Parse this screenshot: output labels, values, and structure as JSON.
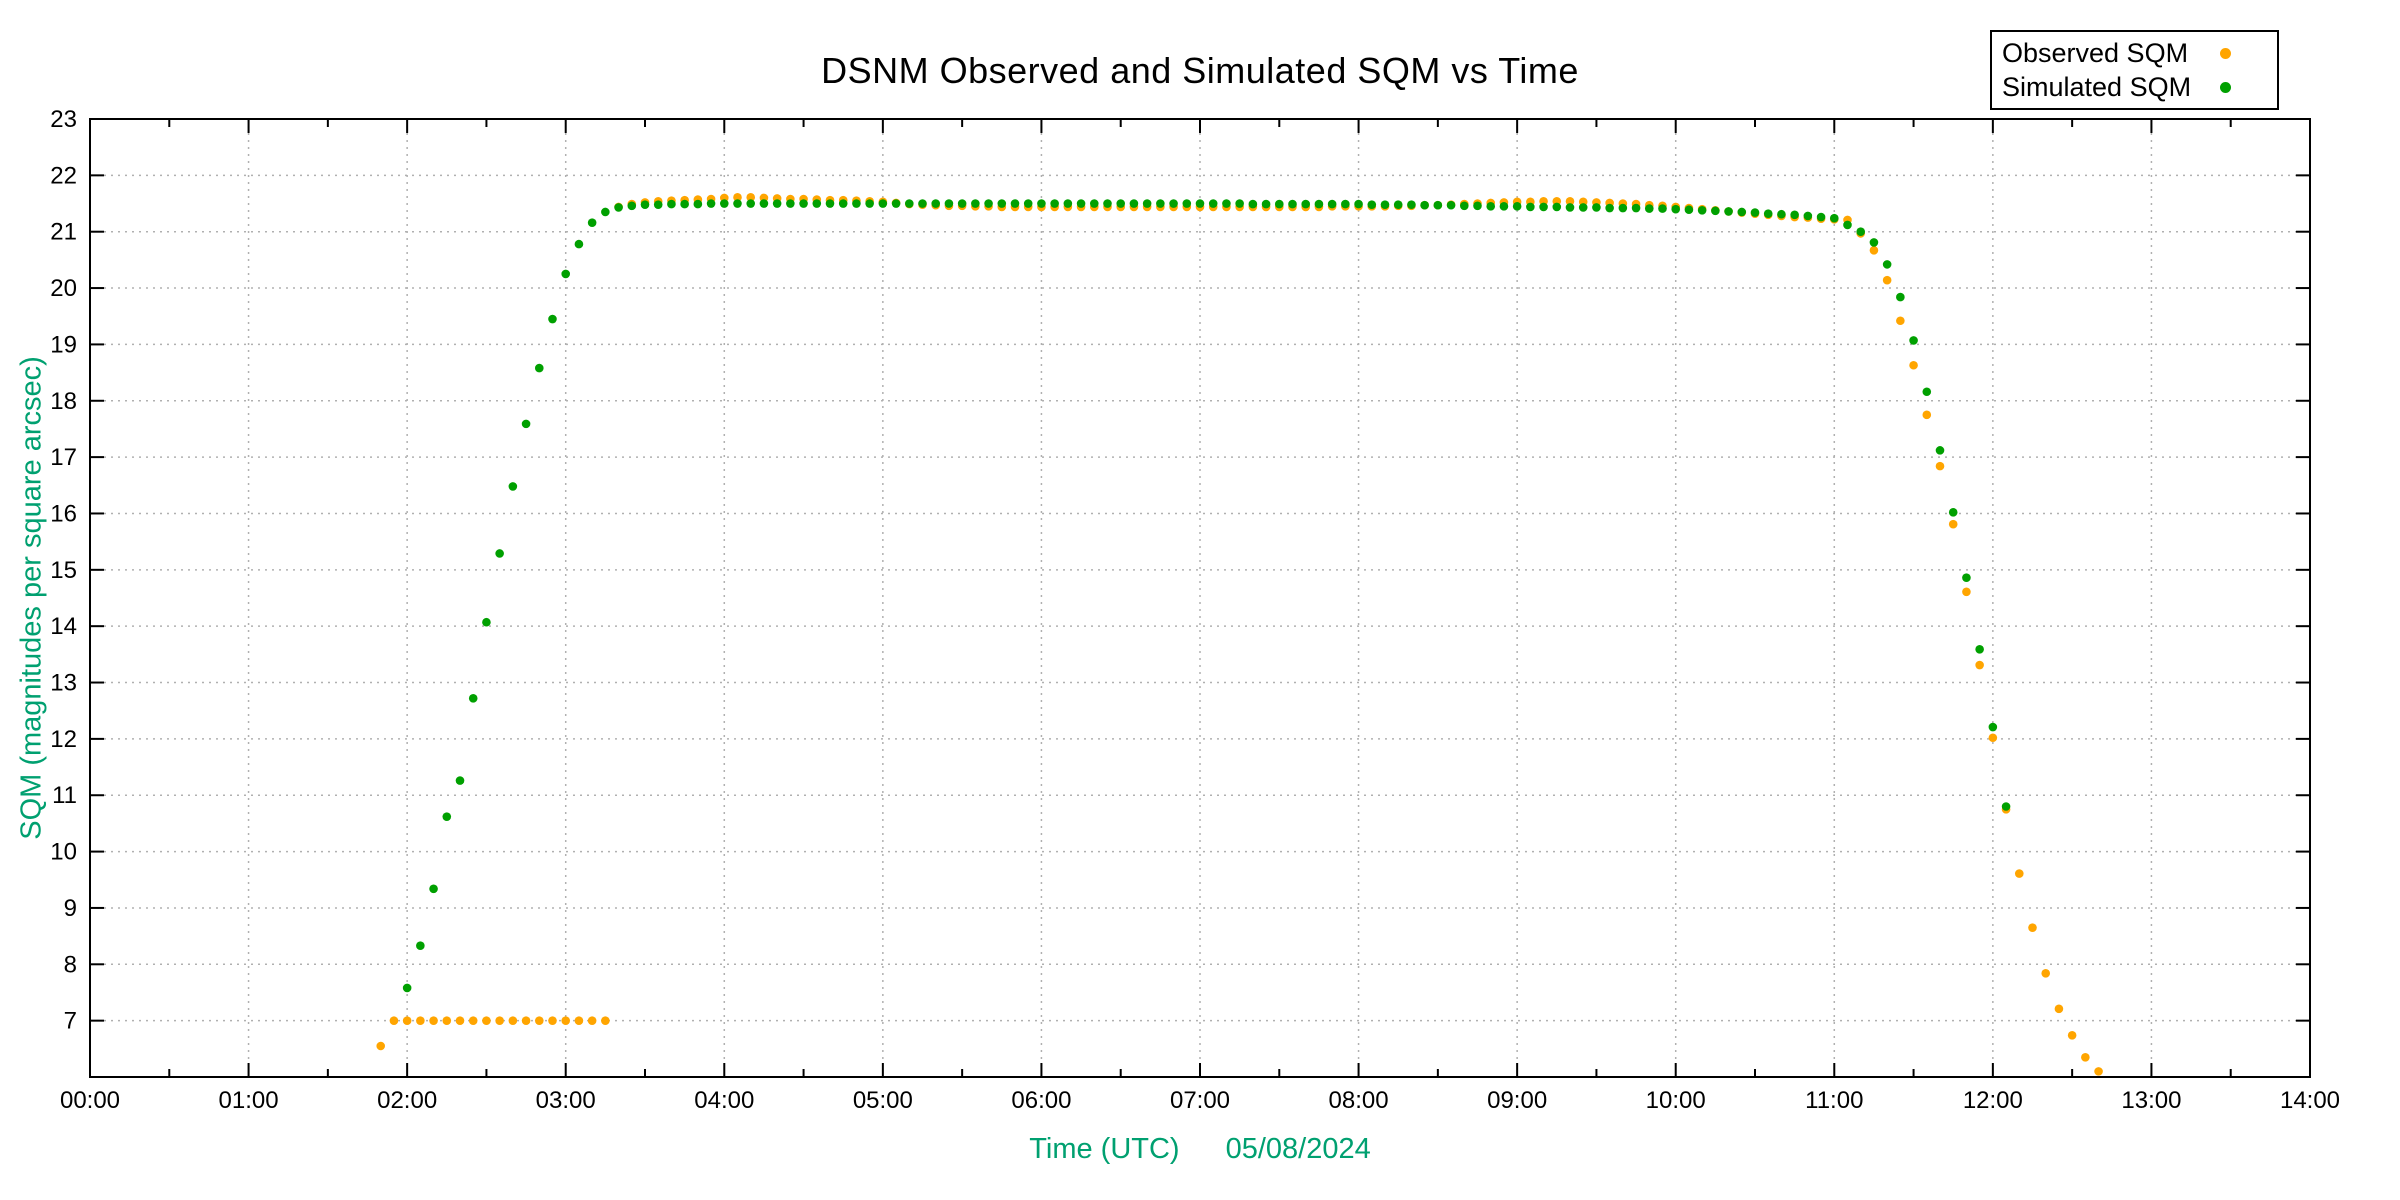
{
  "page": {
    "background": "#ffffff"
  },
  "chart_data": {
    "type": "scatter",
    "title": "DSNM Observed and Simulated SQM vs Time",
    "xlabel": "Time (UTC)",
    "x_date_label": "05/08/2024",
    "ylabel": "SQM (magnitudes per square arcsec)",
    "axis_label_color": "#00A070",
    "grid": {
      "style": "dotted",
      "color": "#b0b0b0",
      "shown": true
    },
    "x_axis": {
      "start": "00:00",
      "end": "14:00",
      "span_hours": 14,
      "major_tick_every_minutes": 60,
      "minor_tick_every_minutes": 30,
      "tick_labels": [
        "00:00",
        "01:00",
        "02:00",
        "03:00",
        "04:00",
        "05:00",
        "06:00",
        "07:00",
        "08:00",
        "09:00",
        "10:00",
        "11:00",
        "12:00",
        "13:00",
        "14:00"
      ]
    },
    "y_axis": {
      "min": 6,
      "max": 23,
      "tick_step": 1,
      "tick_labels": [
        "7",
        "8",
        "9",
        "10",
        "11",
        "12",
        "13",
        "14",
        "15",
        "16",
        "17",
        "18",
        "19",
        "20",
        "21",
        "22",
        "23"
      ]
    },
    "legend": {
      "position": "top-right",
      "entries": [
        {
          "label": "Observed SQM",
          "color": "#FFA500"
        },
        {
          "label": "Simulated SQM",
          "color": "#00A000"
        }
      ]
    },
    "series": [
      {
        "name": "Observed SQM",
        "color": "#FFA500",
        "points": [
          [
            "01:50",
            6.55
          ],
          [
            "01:55",
            7.0
          ],
          [
            "02:00",
            7.0
          ],
          [
            "02:05",
            7.0
          ],
          [
            "02:10",
            7.0
          ],
          [
            "02:15",
            7.0
          ],
          [
            "02:20",
            7.0
          ],
          [
            "02:25",
            7.0
          ],
          [
            "02:30",
            7.0
          ],
          [
            "02:35",
            7.0
          ],
          [
            "02:40",
            7.0
          ],
          [
            "02:45",
            7.0
          ],
          [
            "02:50",
            7.0
          ],
          [
            "02:55",
            7.0
          ],
          [
            "03:00",
            7.0
          ],
          [
            "03:05",
            7.0
          ],
          [
            "03:10",
            7.0
          ],
          [
            "03:15",
            7.0
          ],
          [
            "03:20",
            21.44
          ],
          [
            "03:25",
            21.49
          ],
          [
            "03:30",
            21.52
          ],
          [
            "03:35",
            21.54
          ],
          [
            "03:40",
            21.55
          ],
          [
            "03:45",
            21.56
          ],
          [
            "03:50",
            21.57
          ],
          [
            "03:55",
            21.58
          ],
          [
            "04:00",
            21.6
          ],
          [
            "04:05",
            21.61
          ],
          [
            "04:10",
            21.61
          ],
          [
            "04:15",
            21.6
          ],
          [
            "04:20",
            21.59
          ],
          [
            "04:25",
            21.58
          ],
          [
            "04:30",
            21.58
          ],
          [
            "04:35",
            21.57
          ],
          [
            "04:40",
            21.56
          ],
          [
            "04:45",
            21.56
          ],
          [
            "04:50",
            21.55
          ],
          [
            "04:55",
            21.54
          ],
          [
            "05:00",
            21.53
          ],
          [
            "05:05",
            21.51
          ],
          [
            "05:10",
            21.49
          ],
          [
            "05:15",
            21.48
          ],
          [
            "05:20",
            21.47
          ],
          [
            "05:25",
            21.46
          ],
          [
            "05:30",
            21.46
          ],
          [
            "05:35",
            21.45
          ],
          [
            "05:40",
            21.45
          ],
          [
            "05:45",
            21.44
          ],
          [
            "05:50",
            21.44
          ],
          [
            "05:55",
            21.44
          ],
          [
            "06:00",
            21.44
          ],
          [
            "06:05",
            21.44
          ],
          [
            "06:10",
            21.44
          ],
          [
            "06:15",
            21.44
          ],
          [
            "06:20",
            21.44
          ],
          [
            "06:25",
            21.44
          ],
          [
            "06:30",
            21.44
          ],
          [
            "06:35",
            21.44
          ],
          [
            "06:40",
            21.44
          ],
          [
            "06:45",
            21.44
          ],
          [
            "06:50",
            21.44
          ],
          [
            "06:55",
            21.44
          ],
          [
            "07:00",
            21.44
          ],
          [
            "07:05",
            21.44
          ],
          [
            "07:10",
            21.44
          ],
          [
            "07:15",
            21.44
          ],
          [
            "07:20",
            21.44
          ],
          [
            "07:25",
            21.44
          ],
          [
            "07:30",
            21.44
          ],
          [
            "07:35",
            21.44
          ],
          [
            "07:40",
            21.44
          ],
          [
            "07:45",
            21.44
          ],
          [
            "07:50",
            21.45
          ],
          [
            "07:55",
            21.45
          ],
          [
            "08:00",
            21.45
          ],
          [
            "08:05",
            21.45
          ],
          [
            "08:10",
            21.45
          ],
          [
            "08:15",
            21.46
          ],
          [
            "08:20",
            21.46
          ],
          [
            "08:25",
            21.47
          ],
          [
            "08:30",
            21.47
          ],
          [
            "08:35",
            21.48
          ],
          [
            "08:40",
            21.49
          ],
          [
            "08:45",
            21.5
          ],
          [
            "08:50",
            21.51
          ],
          [
            "08:55",
            21.52
          ],
          [
            "09:00",
            21.53
          ],
          [
            "09:05",
            21.53
          ],
          [
            "09:10",
            21.54
          ],
          [
            "09:15",
            21.54
          ],
          [
            "09:20",
            21.54
          ],
          [
            "09:25",
            21.53
          ],
          [
            "09:30",
            21.52
          ],
          [
            "09:35",
            21.51
          ],
          [
            "09:40",
            21.5
          ],
          [
            "09:45",
            21.49
          ],
          [
            "09:50",
            21.47
          ],
          [
            "09:55",
            21.46
          ],
          [
            "10:00",
            21.44
          ],
          [
            "10:05",
            21.42
          ],
          [
            "10:10",
            21.4
          ],
          [
            "10:15",
            21.38
          ],
          [
            "10:20",
            21.36
          ],
          [
            "10:25",
            21.34
          ],
          [
            "10:30",
            21.32
          ],
          [
            "10:35",
            21.3
          ],
          [
            "10:40",
            21.28
          ],
          [
            "10:45",
            21.26
          ],
          [
            "10:50",
            21.25
          ],
          [
            "10:55",
            21.23
          ],
          [
            "11:00",
            21.22
          ],
          [
            "11:05",
            21.21
          ],
          [
            "11:10",
            20.97
          ],
          [
            "11:15",
            20.67
          ],
          [
            "11:20",
            20.14
          ],
          [
            "11:25",
            19.42
          ],
          [
            "11:30",
            18.63
          ],
          [
            "11:35",
            17.75
          ],
          [
            "11:40",
            16.84
          ],
          [
            "11:45",
            15.81
          ],
          [
            "11:50",
            14.61
          ],
          [
            "11:55",
            13.31
          ],
          [
            "12:00",
            12.02
          ],
          [
            "12:05",
            10.75
          ],
          [
            "12:10",
            9.61
          ],
          [
            "12:15",
            8.65
          ],
          [
            "12:20",
            7.84
          ],
          [
            "12:25",
            7.21
          ],
          [
            "12:30",
            6.74
          ],
          [
            "12:35",
            6.35
          ],
          [
            "12:40",
            6.1
          ]
        ]
      },
      {
        "name": "Simulated SQM",
        "color": "#00A000",
        "points": [
          [
            "02:00",
            7.58
          ],
          [
            "02:05",
            8.33
          ],
          [
            "02:10",
            9.34
          ],
          [
            "02:15",
            10.62
          ],
          [
            "02:20",
            11.26
          ],
          [
            "02:25",
            12.72
          ],
          [
            "02:30",
            14.07
          ],
          [
            "02:35",
            15.29
          ],
          [
            "02:40",
            16.48
          ],
          [
            "02:45",
            17.59
          ],
          [
            "02:50",
            18.58
          ],
          [
            "02:55",
            19.45
          ],
          [
            "03:00",
            20.25
          ],
          [
            "03:05",
            20.78
          ],
          [
            "03:10",
            21.16
          ],
          [
            "03:15",
            21.35
          ],
          [
            "03:20",
            21.43
          ],
          [
            "03:25",
            21.46
          ],
          [
            "03:30",
            21.48
          ],
          [
            "03:35",
            21.48
          ],
          [
            "03:40",
            21.49
          ],
          [
            "03:45",
            21.49
          ],
          [
            "03:50",
            21.49
          ],
          [
            "03:55",
            21.5
          ],
          [
            "04:00",
            21.5
          ],
          [
            "04:05",
            21.5
          ],
          [
            "04:10",
            21.5
          ],
          [
            "04:15",
            21.5
          ],
          [
            "04:20",
            21.5
          ],
          [
            "04:25",
            21.5
          ],
          [
            "04:30",
            21.5
          ],
          [
            "04:35",
            21.5
          ],
          [
            "04:40",
            21.5
          ],
          [
            "04:45",
            21.5
          ],
          [
            "04:50",
            21.5
          ],
          [
            "04:55",
            21.5
          ],
          [
            "05:00",
            21.5
          ],
          [
            "05:05",
            21.5
          ],
          [
            "05:10",
            21.5
          ],
          [
            "05:15",
            21.5
          ],
          [
            "05:20",
            21.5
          ],
          [
            "05:25",
            21.5
          ],
          [
            "05:30",
            21.5
          ],
          [
            "05:35",
            21.5
          ],
          [
            "05:40",
            21.5
          ],
          [
            "05:45",
            21.5
          ],
          [
            "05:50",
            21.5
          ],
          [
            "05:55",
            21.5
          ],
          [
            "06:00",
            21.5
          ],
          [
            "06:05",
            21.5
          ],
          [
            "06:10",
            21.5
          ],
          [
            "06:15",
            21.5
          ],
          [
            "06:20",
            21.5
          ],
          [
            "06:25",
            21.5
          ],
          [
            "06:30",
            21.5
          ],
          [
            "06:35",
            21.5
          ],
          [
            "06:40",
            21.5
          ],
          [
            "06:45",
            21.5
          ],
          [
            "06:50",
            21.5
          ],
          [
            "06:55",
            21.5
          ],
          [
            "07:00",
            21.5
          ],
          [
            "07:05",
            21.5
          ],
          [
            "07:10",
            21.5
          ],
          [
            "07:15",
            21.5
          ],
          [
            "07:20",
            21.49
          ],
          [
            "07:25",
            21.49
          ],
          [
            "07:30",
            21.49
          ],
          [
            "07:35",
            21.49
          ],
          [
            "07:40",
            21.49
          ],
          [
            "07:45",
            21.49
          ],
          [
            "07:50",
            21.49
          ],
          [
            "07:55",
            21.49
          ],
          [
            "08:00",
            21.49
          ],
          [
            "08:05",
            21.48
          ],
          [
            "08:10",
            21.48
          ],
          [
            "08:15",
            21.48
          ],
          [
            "08:20",
            21.48
          ],
          [
            "08:25",
            21.47
          ],
          [
            "08:30",
            21.47
          ],
          [
            "08:35",
            21.47
          ],
          [
            "08:40",
            21.46
          ],
          [
            "08:45",
            21.46
          ],
          [
            "08:50",
            21.45
          ],
          [
            "08:55",
            21.45
          ],
          [
            "09:00",
            21.45
          ],
          [
            "09:05",
            21.44
          ],
          [
            "09:10",
            21.44
          ],
          [
            "09:15",
            21.44
          ],
          [
            "09:20",
            21.43
          ],
          [
            "09:25",
            21.43
          ],
          [
            "09:30",
            21.43
          ],
          [
            "09:35",
            21.42
          ],
          [
            "09:40",
            21.42
          ],
          [
            "09:45",
            21.42
          ],
          [
            "09:50",
            21.41
          ],
          [
            "09:55",
            21.41
          ],
          [
            "10:00",
            21.4
          ],
          [
            "10:05",
            21.39
          ],
          [
            "10:10",
            21.38
          ],
          [
            "10:15",
            21.37
          ],
          [
            "10:20",
            21.36
          ],
          [
            "10:25",
            21.35
          ],
          [
            "10:30",
            21.34
          ],
          [
            "10:35",
            21.32
          ],
          [
            "10:40",
            21.31
          ],
          [
            "10:45",
            21.3
          ],
          [
            "10:50",
            21.28
          ],
          [
            "10:55",
            21.26
          ],
          [
            "11:00",
            21.24
          ],
          [
            "11:05",
            21.12
          ],
          [
            "11:10",
            21.0
          ],
          [
            "11:15",
            20.81
          ],
          [
            "11:20",
            20.42
          ],
          [
            "11:25",
            19.84
          ],
          [
            "11:30",
            19.07
          ],
          [
            "11:35",
            18.16
          ],
          [
            "11:40",
            17.12
          ],
          [
            "11:45",
            16.02
          ],
          [
            "11:50",
            14.86
          ],
          [
            "11:55",
            13.59
          ],
          [
            "12:00",
            12.21
          ],
          [
            "12:05",
            10.8
          ]
        ]
      }
    ]
  }
}
